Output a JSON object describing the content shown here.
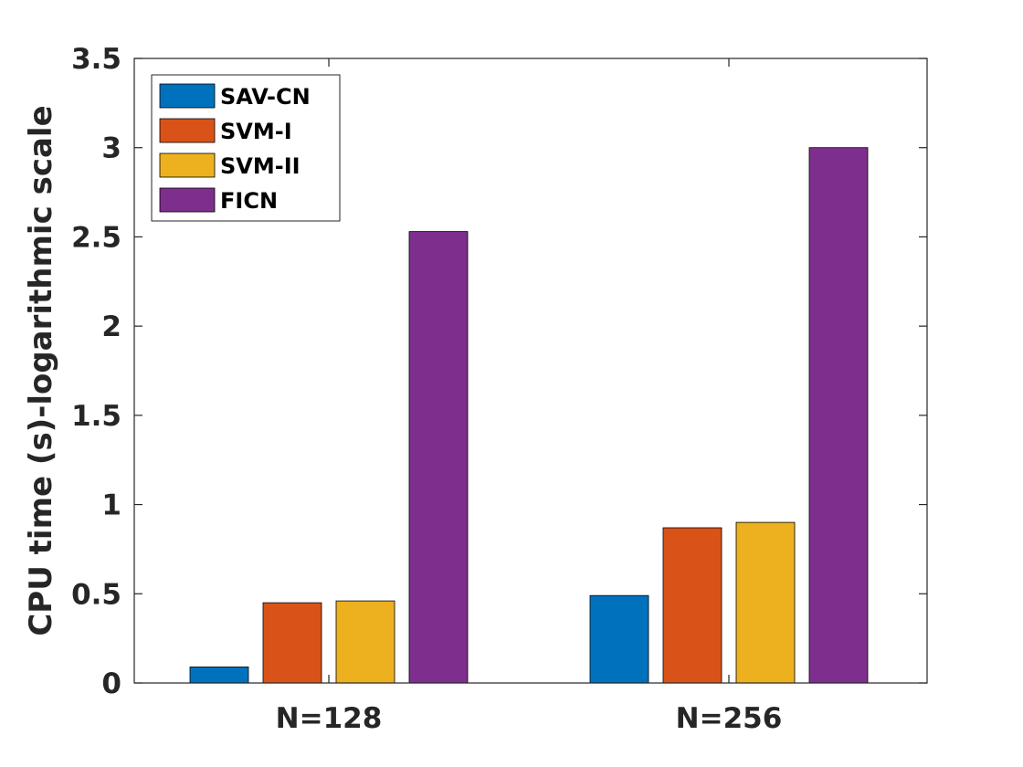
{
  "chart_data": {
    "type": "bar",
    "categories": [
      "N=128",
      "N=256"
    ],
    "series": [
      {
        "name": "SAV-CN",
        "color": "#0072BD",
        "values": [
          0.09,
          0.49
        ]
      },
      {
        "name": "SVM-I",
        "color": "#D95319",
        "values": [
          0.45,
          0.87
        ]
      },
      {
        "name": "SVM-II",
        "color": "#EDB120",
        "values": [
          0.46,
          0.9
        ]
      },
      {
        "name": "FICN",
        "color": "#7E2F8E",
        "values": [
          2.53,
          3.0
        ]
      }
    ],
    "title": "",
    "xlabel": "",
    "ylabel": "CPU time (s)-logarithmic scale",
    "ylim": [
      0,
      3.5
    ],
    "yticks": [
      "0",
      "0.5",
      "1",
      "1.5",
      "2",
      "2.5",
      "3",
      "3.5"
    ],
    "grid": false,
    "legend_position": "top-left"
  }
}
